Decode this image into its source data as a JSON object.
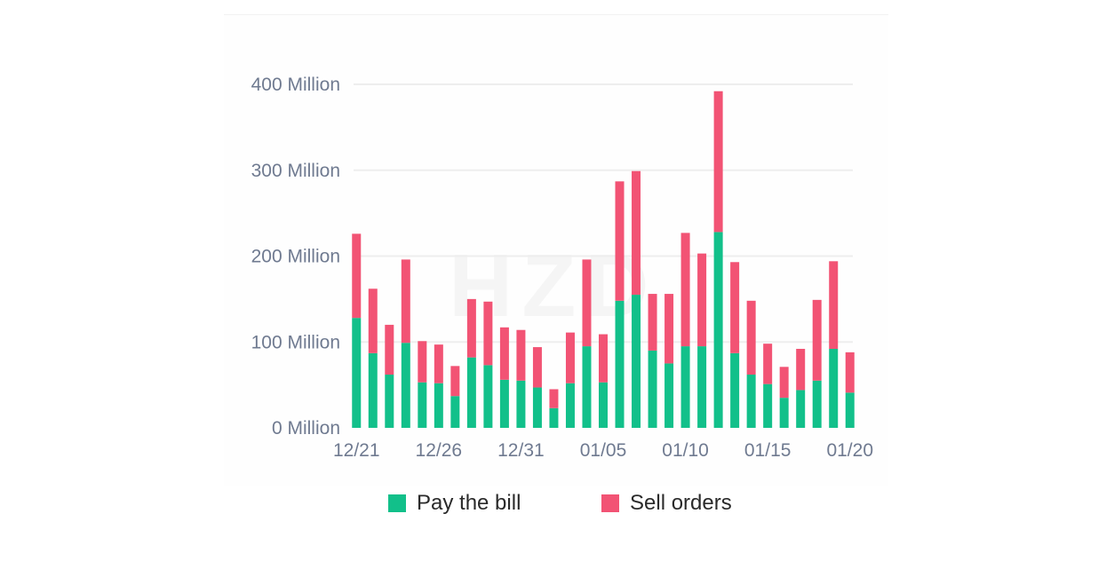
{
  "chart_data": {
    "type": "bar",
    "stacked": true,
    "categories": [
      "12/21",
      "12/22",
      "12/23",
      "12/24",
      "12/25",
      "12/26",
      "12/27",
      "12/28",
      "12/29",
      "12/30",
      "12/31",
      "01/01",
      "01/02",
      "01/03",
      "01/04",
      "01/05",
      "01/06",
      "01/07",
      "01/08",
      "01/09",
      "01/10",
      "01/11",
      "01/12",
      "01/13",
      "01/14",
      "01/15",
      "01/16",
      "01/17",
      "01/18",
      "01/19",
      "01/20"
    ],
    "x_tick_labels": [
      "12/21",
      "12/26",
      "12/31",
      "01/05",
      "01/10",
      "01/15",
      "01/20"
    ],
    "y_tick_labels": [
      "0 Million",
      "100 Million",
      "200 Million",
      "300 Million",
      "400 Million"
    ],
    "y_ticks": [
      0,
      100,
      200,
      300,
      400
    ],
    "ylim": [
      0,
      400
    ],
    "ylabel": "",
    "xlabel": "",
    "title": "",
    "grid": true,
    "legend_position": "bottom",
    "series": [
      {
        "name": "Pay the bill",
        "color": "#12c08a",
        "values": [
          128,
          87,
          62,
          99,
          53,
          52,
          37,
          82,
          73,
          56,
          55,
          47,
          23,
          52,
          95,
          53,
          148,
          155,
          90,
          75,
          95,
          95,
          228,
          87,
          62,
          51,
          35,
          44,
          55,
          92,
          41
        ]
      },
      {
        "name": "Sell orders",
        "color": "#f25374",
        "values": [
          98,
          75,
          58,
          97,
          48,
          45,
          35,
          68,
          74,
          61,
          59,
          47,
          22,
          59,
          101,
          56,
          139,
          144,
          66,
          81,
          132,
          108,
          164,
          106,
          86,
          47,
          36,
          48,
          94,
          102,
          47
        ]
      }
    ]
  },
  "watermark_text": "HZD"
}
